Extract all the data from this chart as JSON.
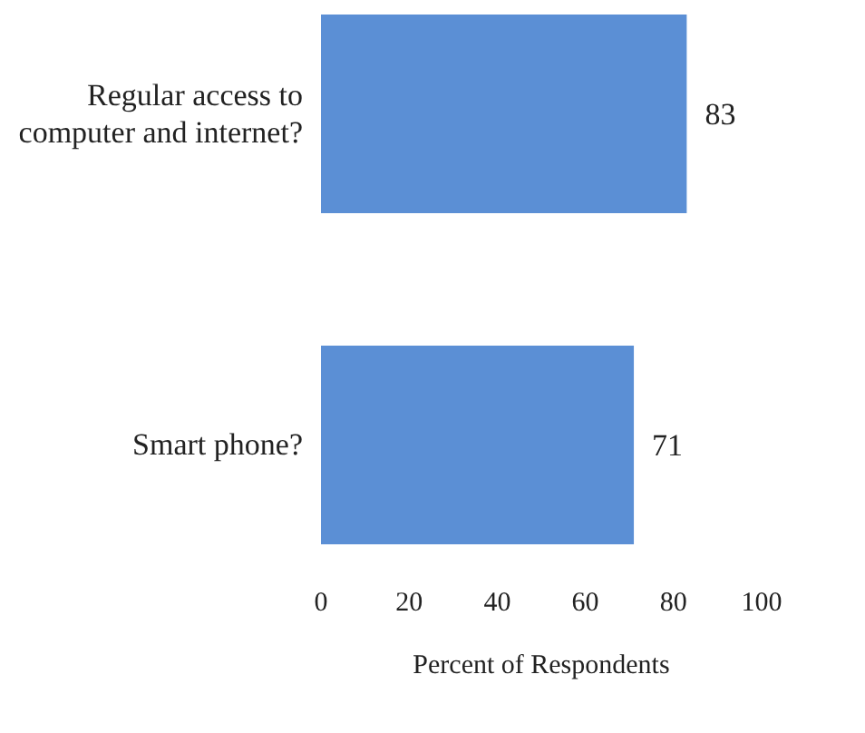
{
  "chart_data": {
    "type": "bar",
    "orientation": "horizontal",
    "categories": [
      "Regular access to computer and internet?",
      "Smart phone?"
    ],
    "values": [
      83,
      71
    ],
    "color": "#5b8fd5",
    "xlim": [
      0,
      100
    ],
    "xticks": [
      0,
      20,
      40,
      60,
      80,
      100
    ],
    "xlabel": "Percent of Respondents",
    "data_labels": true,
    "grid": false
  }
}
